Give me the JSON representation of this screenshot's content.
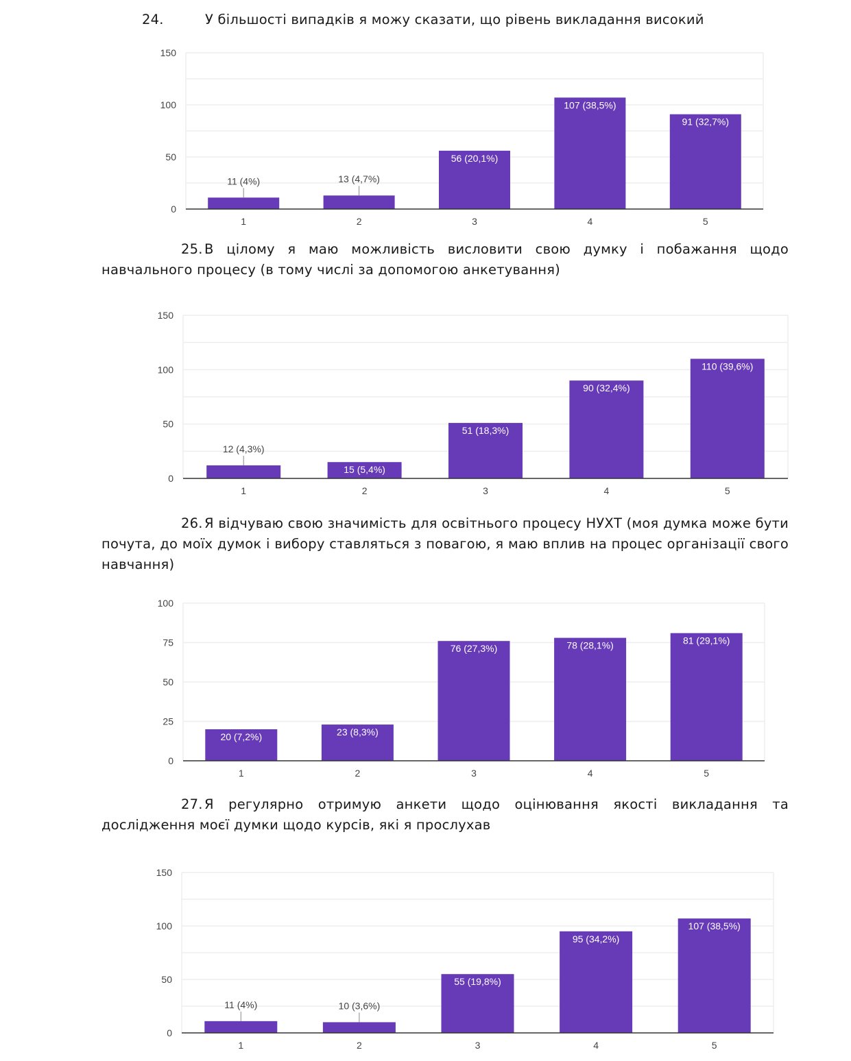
{
  "style": {
    "bar_color": "#673ab7",
    "grid_color": "#eeeeee",
    "axis_color": "#333333"
  },
  "questions": [
    {
      "number": "24.",
      "text": "У більшості випадків я можу сказати, що рівень викладання високий"
    },
    {
      "number": "25.",
      "text": "В цілому я маю можливість висловити свою думку і побажання щодо навчального процесу (в тому числі за допомогою анкетування)"
    },
    {
      "number": "26.",
      "text": "Я відчуваю свою значимість для освітнього процесу НУХТ (моя думка може бути почута, до моїх думок і вибору ставляться з повагою, я маю вплив на процес організації свого навчання)"
    },
    {
      "number": "27.",
      "text": "Я регулярно отримую анкети щодо оцінювання якості викладання та дослідження моєї думки щодо курсів, які я прослухав"
    }
  ],
  "chart_data": [
    {
      "type": "bar",
      "title": "24. У більшості випадків я можу сказати, що рівень викладання високий",
      "categories": [
        "1",
        "2",
        "3",
        "4",
        "5"
      ],
      "values": [
        11,
        13,
        56,
        107,
        91
      ],
      "labels": [
        "11 (4%)",
        "13 (4,7%)",
        "56 (20,1%)",
        "107 (38,5%)",
        "91 (32,7%)"
      ],
      "yticks": [
        "0",
        "50",
        "100",
        "150"
      ],
      "ytick_values": [
        0,
        50,
        100,
        150
      ],
      "ylim": [
        0,
        150
      ],
      "minor_grid_step": 25,
      "xlabel": "",
      "ylabel": "",
      "grid": true
    },
    {
      "type": "bar",
      "title": "25. В цілому я маю можливість висловити свою думку і побажання щодо навчального процесу (в тому числі за допомогою анкетування)",
      "categories": [
        "1",
        "2",
        "3",
        "4",
        "5"
      ],
      "values": [
        12,
        15,
        51,
        90,
        110
      ],
      "labels": [
        "12 (4,3%)",
        "15 (5,4%)",
        "51 (18,3%)",
        "90 (32,4%)",
        "110 (39,6%)"
      ],
      "yticks": [
        "0",
        "50",
        "100",
        "150"
      ],
      "ytick_values": [
        0,
        50,
        100,
        150
      ],
      "ylim": [
        0,
        150
      ],
      "minor_grid_step": 25,
      "xlabel": "",
      "ylabel": "",
      "grid": true
    },
    {
      "type": "bar",
      "title": "26. Я відчуваю свою значимість для освітнього процесу НУХТ",
      "categories": [
        "1",
        "2",
        "3",
        "4",
        "5"
      ],
      "values": [
        20,
        23,
        76,
        78,
        81
      ],
      "labels": [
        "20 (7,2%)",
        "23 (8,3%)",
        "76 (27,3%)",
        "78 (28,1%)",
        "81 (29,1%)"
      ],
      "yticks": [
        "0",
        "25",
        "50",
        "75",
        "100"
      ],
      "ytick_values": [
        0,
        25,
        50,
        75,
        100
      ],
      "ylim": [
        0,
        100
      ],
      "minor_grid_step": 25,
      "xlabel": "",
      "ylabel": "",
      "grid": true
    },
    {
      "type": "bar",
      "title": "27. Я регулярно отримую анкети щодо оцінювання якості викладання та дослідження моєї думки щодо курсів, які я прослухав",
      "categories": [
        "1",
        "2",
        "3",
        "4",
        "5"
      ],
      "values": [
        11,
        10,
        55,
        95,
        107
      ],
      "labels": [
        "11 (4%)",
        "10 (3,6%)",
        "55 (19,8%)",
        "95 (34,2%)",
        "107 (38,5%)"
      ],
      "yticks": [
        "0",
        "50",
        "100",
        "150"
      ],
      "ytick_values": [
        0,
        50,
        100,
        150
      ],
      "ylim": [
        0,
        150
      ],
      "minor_grid_step": 25,
      "xlabel": "",
      "ylabel": "",
      "grid": true
    }
  ]
}
